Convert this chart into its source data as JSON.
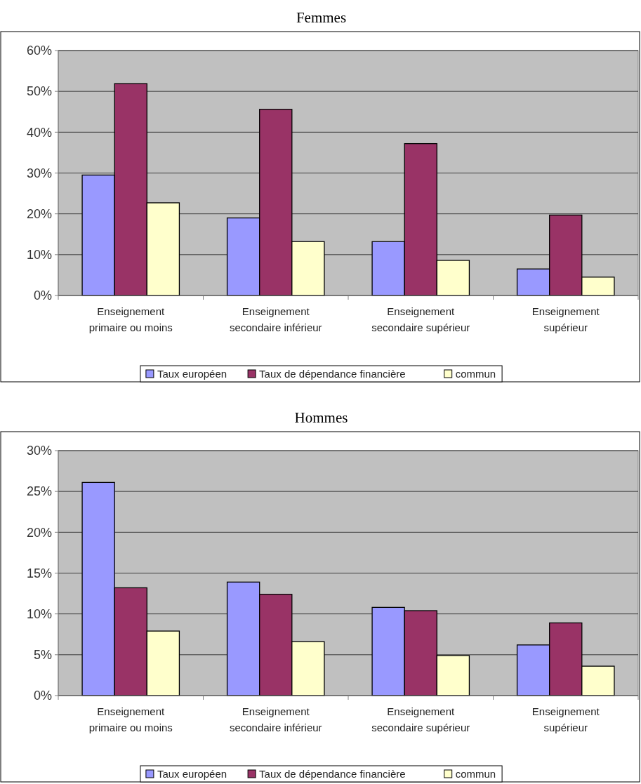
{
  "chart_data": [
    {
      "type": "bar",
      "title": "Femmes",
      "categories": [
        "Enseignement primaire ou moins",
        "Enseignement secondaire inférieur",
        "Enseignement secondaire supérieur",
        "Enseignement supérieur"
      ],
      "series": [
        {
          "name": "Taux européen",
          "color": "#9999ff",
          "values": [
            29.5,
            19.0,
            13.2,
            6.5
          ]
        },
        {
          "name": "Taux de dépendance financière",
          "color": "#993366",
          "values": [
            51.9,
            45.6,
            37.2,
            19.7
          ]
        },
        {
          "name": "commun",
          "color": "#ffffcc",
          "values": [
            22.7,
            13.2,
            8.6,
            4.5
          ]
        }
      ],
      "ylim": [
        0,
        60
      ],
      "yticks": [
        {
          "value": 0,
          "label": "0%"
        },
        {
          "value": 10,
          "label": "10%"
        },
        {
          "value": 20,
          "label": "20%"
        },
        {
          "value": 30,
          "label": "30%"
        },
        {
          "value": 40,
          "label": "40%"
        },
        {
          "value": 50,
          "label": "50%"
        },
        {
          "value": 60,
          "label": "60%"
        }
      ],
      "grid": "y",
      "legend": "bottom"
    },
    {
      "type": "bar",
      "title": "Hommes",
      "categories": [
        "Enseignement primaire ou moins",
        "Enseignement secondaire inférieur",
        "Enseignement secondaire supérieur",
        "Enseignement supérieur"
      ],
      "series": [
        {
          "name": "Taux européen",
          "color": "#9999ff",
          "values": [
            26.1,
            13.9,
            10.8,
            6.2
          ]
        },
        {
          "name": "Taux de dépendance financière",
          "color": "#993366",
          "values": [
            13.2,
            12.4,
            10.4,
            8.9
          ]
        },
        {
          "name": "commun",
          "color": "#ffffcc",
          "values": [
            7.9,
            6.6,
            4.9,
            3.6
          ]
        }
      ],
      "ylim": [
        0,
        30
      ],
      "yticks": [
        {
          "value": 0,
          "label": "0%"
        },
        {
          "value": 5,
          "label": "5%"
        },
        {
          "value": 10,
          "label": "10%"
        },
        {
          "value": 15,
          "label": "15%"
        },
        {
          "value": 20,
          "label": "20%"
        },
        {
          "value": 25,
          "label": "25%"
        },
        {
          "value": 30,
          "label": "30%"
        }
      ],
      "grid": "y",
      "legend": "bottom"
    }
  ]
}
